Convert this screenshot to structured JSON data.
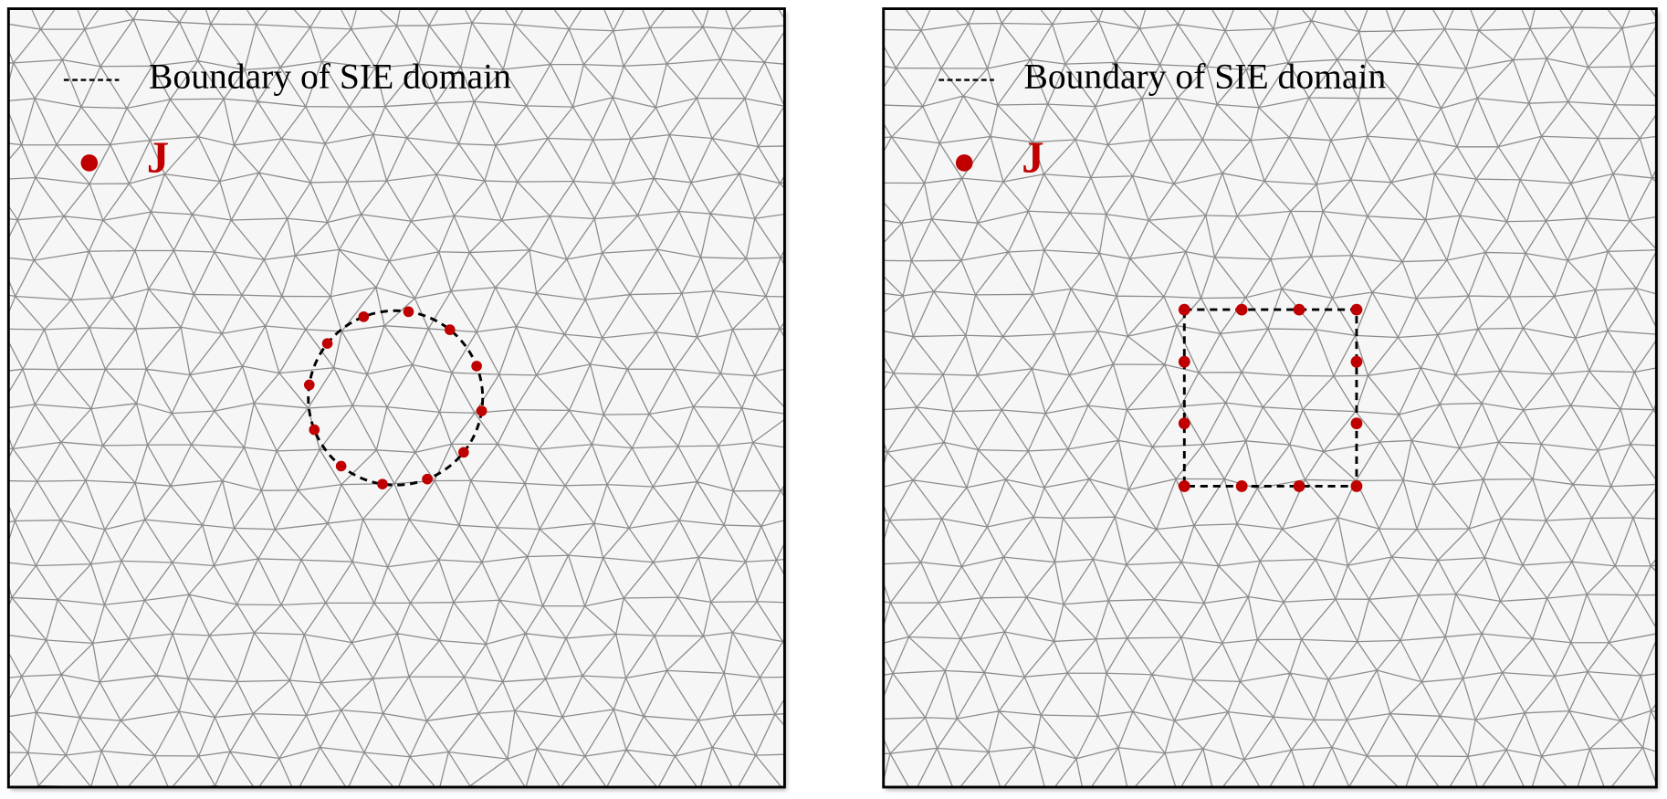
{
  "panels": [
    {
      "legend": "Boundary of SIE domain",
      "source_label": "J"
    },
    {
      "legend": "Boundary of SIE domain",
      "source_label": "J"
    }
  ]
}
